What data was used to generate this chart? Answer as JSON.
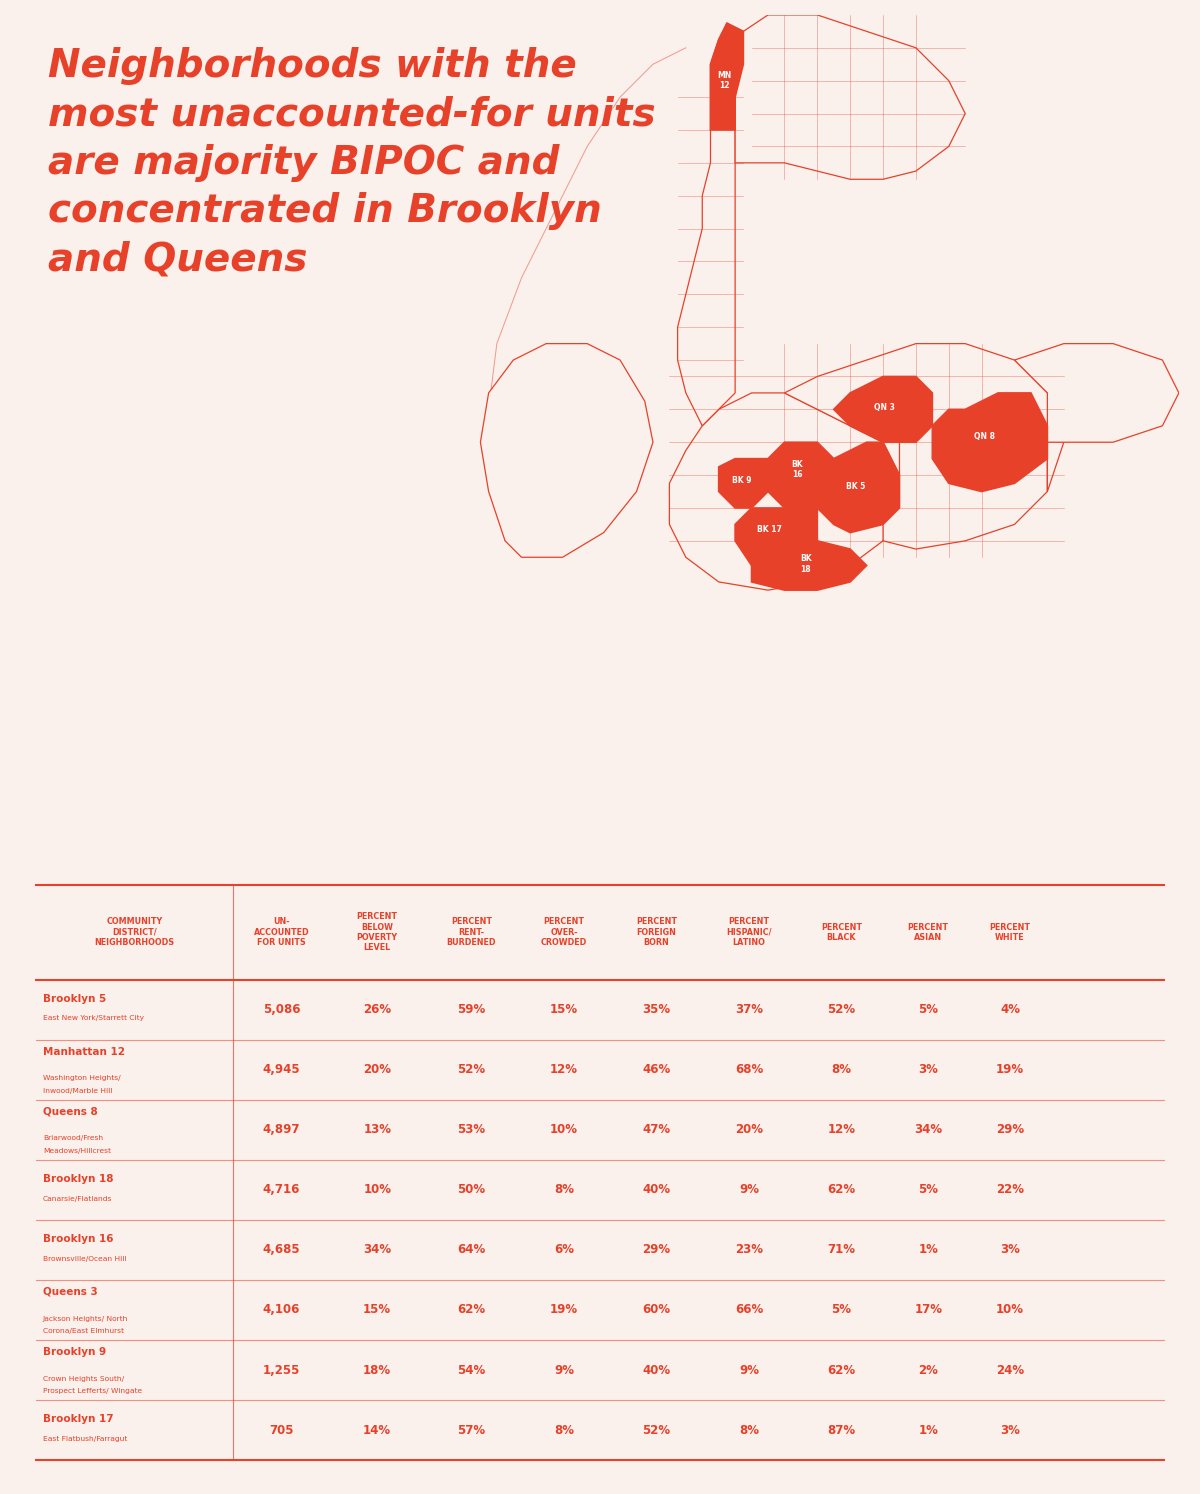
{
  "title_lines": [
    "Neighborhoods with the",
    "most unaccounted-for units",
    "are majority BIPOC and",
    "concentrated in Brooklyn",
    "and Queens"
  ],
  "background_color": "#FAF0EC",
  "red_color": "#E8412A",
  "table_headers": [
    "COMMUNITY\nDISTRICT/\nNEIGHBORHOODS",
    "UN-\nACCOUNTED\nFOR UNITS",
    "PERCENT\nBELOW\nPOVERTY\nLEVEL",
    "PERCENT\nRENT-\nBURDENED",
    "PERCENT\nOVER-\nCROWDED",
    "PERCENT\nFOREIGN\nBORN",
    "PERCENT\nHISPANIC/\nLATINO",
    "PERCENT\nBLACK",
    "PERCENT\nASIAN",
    "PERCENT\nWHITE"
  ],
  "rows": [
    {
      "district": "Brooklyn 5",
      "neighborhood": "East New York/Starrett City",
      "unaccounted": "5,086",
      "poverty": "26%",
      "rent": "59%",
      "crowded": "15%",
      "foreign": "35%",
      "hispanic": "37%",
      "black": "52%",
      "asian": "5%",
      "white": "4%"
    },
    {
      "district": "Manhattan 12",
      "neighborhood": "Washington Heights/\nInwood/Marble Hill",
      "unaccounted": "4,945",
      "poverty": "20%",
      "rent": "52%",
      "crowded": "12%",
      "foreign": "46%",
      "hispanic": "68%",
      "black": "8%",
      "asian": "3%",
      "white": "19%"
    },
    {
      "district": "Queens 8",
      "neighborhood": "Briarwood/Fresh\nMeadows/Hillcrest",
      "unaccounted": "4,897",
      "poverty": "13%",
      "rent": "53%",
      "crowded": "10%",
      "foreign": "47%",
      "hispanic": "20%",
      "black": "12%",
      "asian": "34%",
      "white": "29%"
    },
    {
      "district": "Brooklyn 18",
      "neighborhood": "Canarsie/Flatlands",
      "unaccounted": "4,716",
      "poverty": "10%",
      "rent": "50%",
      "crowded": "8%",
      "foreign": "40%",
      "hispanic": "9%",
      "black": "62%",
      "asian": "5%",
      "white": "22%"
    },
    {
      "district": "Brooklyn 16",
      "neighborhood": "Brownsville/Ocean Hill",
      "unaccounted": "4,685",
      "poverty": "34%",
      "rent": "64%",
      "crowded": "6%",
      "foreign": "29%",
      "hispanic": "23%",
      "black": "71%",
      "asian": "1%",
      "white": "3%"
    },
    {
      "district": "Queens 3",
      "neighborhood": "Jackson Heights/ North\nCorona/East Elmhurst",
      "unaccounted": "4,106",
      "poverty": "15%",
      "rent": "62%",
      "crowded": "19%",
      "foreign": "60%",
      "hispanic": "66%",
      "black": "5%",
      "asian": "17%",
      "white": "10%"
    },
    {
      "district": "Brooklyn 9",
      "neighborhood": "Crown Heights South/\nProspect Lefferts/ Wingate",
      "unaccounted": "1,255",
      "poverty": "18%",
      "rent": "54%",
      "crowded": "9%",
      "foreign": "40%",
      "hispanic": "9%",
      "black": "62%",
      "asian": "2%",
      "white": "24%"
    },
    {
      "district": "Brooklyn 17",
      "neighborhood": "East Flatbush/Farragut",
      "unaccounted": "705",
      "poverty": "14%",
      "rent": "57%",
      "crowded": "8%",
      "foreign": "52%",
      "hispanic": "8%",
      "black": "87%",
      "asian": "1%",
      "white": "3%"
    }
  ]
}
